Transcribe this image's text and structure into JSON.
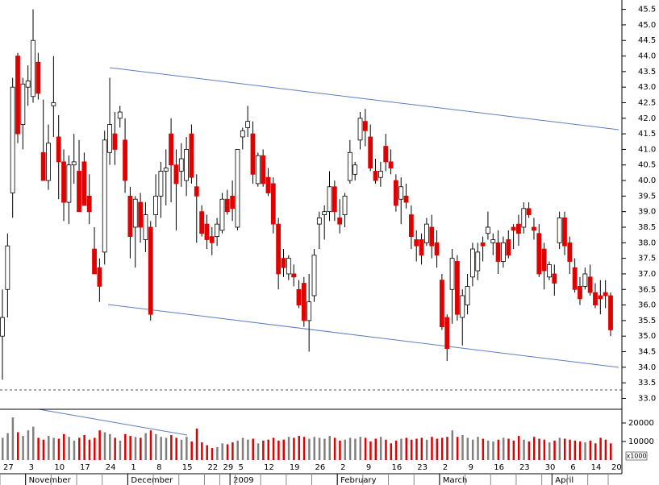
{
  "chart_data": {
    "type": "candlestick",
    "ylim": [
      32.65,
      45.8
    ],
    "yticks": [
      {
        "value": 33,
        "label": "33.0"
      },
      {
        "value": 33.5,
        "label": "33.5"
      },
      {
        "value": 34,
        "label": "34.0"
      },
      {
        "value": 34.5,
        "label": "34.5"
      },
      {
        "value": 35,
        "label": "35.0"
      },
      {
        "value": 35.5,
        "label": "35.5"
      },
      {
        "value": 36,
        "label": "36.0"
      },
      {
        "value": 36.5,
        "label": "36.5"
      },
      {
        "value": 37,
        "label": "37.0"
      },
      {
        "value": 37.5,
        "label": "37.5"
      },
      {
        "value": 38,
        "label": "38.0"
      },
      {
        "value": 38.5,
        "label": "38.5"
      },
      {
        "value": 39,
        "label": "39.0"
      },
      {
        "value": 39.5,
        "label": "39.5"
      },
      {
        "value": 40,
        "label": "40.0"
      },
      {
        "value": 40.5,
        "label": "40.5"
      },
      {
        "value": 41,
        "label": "41.0"
      },
      {
        "value": 41.5,
        "label": "41.5"
      },
      {
        "value": 42,
        "label": "42.0"
      },
      {
        "value": 42.5,
        "label": "42.5"
      },
      {
        "value": 43,
        "label": "43.0"
      },
      {
        "value": 43.5,
        "label": "43.5"
      },
      {
        "value": 44,
        "label": "44.0"
      },
      {
        "value": 44.5,
        "label": "44.5"
      },
      {
        "value": 45,
        "label": "45.0"
      },
      {
        "value": 45.5,
        "label": "45.5"
      }
    ],
    "vlim": [
      0,
      27400
    ],
    "vticks": [
      10000,
      20000
    ],
    "volume_unit": "x1000",
    "up_color": "#ffffff",
    "down_color": "#e00000",
    "volume_up_color": "#808080",
    "volume_down_color": "#e00000",
    "categories": [
      "27",
      null,
      null,
      null,
      null,
      "3",
      null,
      null,
      null,
      null,
      "10",
      null,
      null,
      null,
      null,
      "17",
      null,
      null,
      null,
      null,
      "24",
      null,
      null,
      null,
      null,
      "1",
      null,
      null,
      null,
      null,
      "8",
      null,
      null,
      null,
      null,
      "15",
      null,
      null,
      null,
      null,
      "22",
      null,
      null,
      "29",
      null,
      null,
      "5",
      null,
      null,
      null,
      null,
      "12",
      null,
      null,
      null,
      null,
      "19",
      null,
      null,
      null,
      null,
      "26",
      null,
      null,
      null,
      null,
      "2",
      null,
      null,
      null,
      null,
      "9",
      null,
      null,
      null,
      null,
      "16",
      null,
      null,
      null,
      null,
      "23",
      null,
      null,
      null,
      null,
      "2",
      null,
      null,
      null,
      null,
      "9",
      null,
      null,
      null,
      null,
      "16",
      null,
      null,
      null,
      null,
      "23",
      null,
      null,
      null,
      null,
      "30",
      null,
      null,
      null,
      null,
      "6",
      null,
      null,
      null,
      "14",
      null,
      null,
      null,
      "20"
    ],
    "months": [
      null,
      null,
      null,
      null,
      null,
      "November",
      null,
      null,
      null,
      null,
      null,
      null,
      null,
      null,
      null,
      null,
      null,
      null,
      null,
      null,
      null,
      null,
      null,
      null,
      null,
      "December",
      null,
      null,
      null,
      null,
      null,
      null,
      null,
      null,
      null,
      null,
      null,
      null,
      null,
      null,
      null,
      null,
      null,
      null,
      null,
      "2009",
      null,
      null,
      null,
      null,
      null,
      null,
      null,
      null,
      null,
      null,
      null,
      null,
      null,
      null,
      null,
      null,
      null,
      null,
      null,
      null,
      "February",
      null,
      null,
      null,
      null,
      null,
      null,
      null,
      null,
      null,
      null,
      null,
      null,
      null,
      null,
      null,
      null,
      null,
      null,
      null,
      "March",
      null,
      null,
      null,
      null,
      null,
      null,
      null,
      null,
      null,
      null,
      null,
      null,
      null,
      null,
      null,
      null,
      null,
      null,
      null,
      null,
      null,
      "April",
      null,
      null,
      null,
      null,
      null,
      null,
      null,
      null,
      null,
      null,
      null
    ],
    "open": [
      35.0,
      36.5,
      39.6,
      44.0,
      41.8,
      43.0,
      42.7,
      43.8,
      40.9,
      40.0,
      42.4,
      41.4,
      40.6,
      39.3,
      40.5,
      40.3,
      40.6,
      39.5,
      37.8,
      37.2,
      37.7,
      40.9,
      41.5,
      42.0,
      41.3,
      39.5,
      38.5,
      39.3,
      38.1,
      38.5,
      38.9,
      39.5,
      40.3,
      41.5,
      40.5,
      40.3,
      40.0,
      41.5,
      39.8,
      39.0,
      38.6,
      38.2,
      38.2,
      38.4,
      39.4,
      39.5,
      38.5,
      41.4,
      41.7,
      41.5,
      39.9,
      40.8,
      40.1,
      39.9,
      38.6,
      37.5,
      37.0,
      37.0,
      36.5,
      36.7,
      35.5,
      36.3,
      38.6,
      38.9,
      39.0,
      39.8,
      38.8,
      38.9,
      40.0,
      40.2,
      41.3,
      41.9,
      41.4,
      40.3,
      40.1,
      41.1,
      40.6,
      40.0,
      39.4,
      39.5,
      38.9,
      38.1,
      38.1,
      38.0,
      38.5,
      38.0,
      36.8,
      35.6,
      36.5,
      37.4,
      35.6,
      36.0,
      36.9,
      37.1,
      38.0,
      38.3,
      38.0,
      38.0,
      37.4,
      38.1,
      38.5,
      38.6,
      38.5,
      39.1,
      38.5,
      38.3,
      37.8,
      36.9,
      37.0,
      38.0,
      38.8,
      38.0,
      37.2,
      36.6,
      36.6,
      36.9,
      36.4,
      36.3,
      36.4,
      36.3
    ],
    "high": [
      36.5,
      38.3,
      43.3,
      44.1,
      43.3,
      43.7,
      45.5,
      44.1,
      42.6,
      41.8,
      44.0,
      42.1,
      41.0,
      40.8,
      41.5,
      41.3,
      40.9,
      40.2,
      38.5,
      37.5,
      41.6,
      43.3,
      42.2,
      42.4,
      42.0,
      39.8,
      39.5,
      39.6,
      39.3,
      38.7,
      40.2,
      40.6,
      41.0,
      42.0,
      41.0,
      41.2,
      41.4,
      41.8,
      40.2,
      39.2,
      38.9,
      38.5,
      38.8,
      39.6,
      39.7,
      40.0,
      41.0,
      41.7,
      42.4,
      41.9,
      40.9,
      41.0,
      40.4,
      40.1,
      38.8,
      37.8,
      37.6,
      37.3,
      36.8,
      36.9,
      37.0,
      37.8,
      39.0,
      39.2,
      40.3,
      40.0,
      39.4,
      39.6,
      41.3,
      40.6,
      42.2,
      42.3,
      41.8,
      40.7,
      40.6,
      41.5,
      41.0,
      40.2,
      40.1,
      39.9,
      39.2,
      38.4,
      38.3,
      38.8,
      38.9,
      38.4,
      37.0,
      35.7,
      37.8,
      37.6,
      36.5,
      37.0,
      38.0,
      38.0,
      38.2,
      39.0,
      38.3,
      38.4,
      38.2,
      38.4,
      38.6,
      38.9,
      39.3,
      39.3,
      38.8,
      38.6,
      38.0,
      37.4,
      37.3,
      39.0,
      39.0,
      38.2,
      37.5,
      36.9,
      37.2,
      37.3,
      36.7,
      36.8,
      36.8,
      36.4
    ],
    "low": [
      33.6,
      35.6,
      38.8,
      41.2,
      41.0,
      42.4,
      42.5,
      42.6,
      40.0,
      39.7,
      41.4,
      39.4,
      38.7,
      38.6,
      39.9,
      39.0,
      39.2,
      38.6,
      37.0,
      36.1,
      37.3,
      40.5,
      40.5,
      41.7,
      39.6,
      37.5,
      37.2,
      38.0,
      37.7,
      35.5,
      38.5,
      38.8,
      39.2,
      39.3,
      38.4,
      39.8,
      39.5,
      39.9,
      38.0,
      38.2,
      37.8,
      37.6,
      37.9,
      38.3,
      38.9,
      38.7,
      38.4,
      41.0,
      41.4,
      39.9,
      39.8,
      39.8,
      39.5,
      38.3,
      36.5,
      36.9,
      36.8,
      36.6,
      35.9,
      35.3,
      34.5,
      36.1,
      37.8,
      38.1,
      38.7,
      38.7,
      38.3,
      38.5,
      39.9,
      40.0,
      41.0,
      41.1,
      40.3,
      39.9,
      39.8,
      40.3,
      40.2,
      39.0,
      38.6,
      39.1,
      37.8,
      37.4,
      37.3,
      37.9,
      37.5,
      37.2,
      35.2,
      34.2,
      35.4,
      35.5,
      34.7,
      35.7,
      36.6,
      36.8,
      37.4,
      38.1,
      37.6,
      37.0,
      37.2,
      37.5,
      37.8,
      37.9,
      38.3,
      38.8,
      38.1,
      36.9,
      36.5,
      36.8,
      36.3,
      37.8,
      37.6,
      37.0,
      36.4,
      36.0,
      36.5,
      36.3,
      35.9,
      35.7,
      35.9,
      35.0
    ],
    "close": [
      35.6,
      37.9,
      43.0,
      41.5,
      43.1,
      43.2,
      44.5,
      42.8,
      40.0,
      41.2,
      42.5,
      40.6,
      39.3,
      40.5,
      40.6,
      39.0,
      39.2,
      39.0,
      37.0,
      36.6,
      41.3,
      41.8,
      41.0,
      42.2,
      40.0,
      38.2,
      39.4,
      38.5,
      38.9,
      35.7,
      39.5,
      40.3,
      40.4,
      40.5,
      39.9,
      40.7,
      41.0,
      40.1,
      39.5,
      38.3,
      38.1,
      38.0,
      38.6,
      39.4,
      39.0,
      39.1,
      41.0,
      41.6,
      41.9,
      40.2,
      40.8,
      39.9,
      39.6,
      38.6,
      37.0,
      37.2,
      37.5,
      36.9,
      36.0,
      35.5,
      36.1,
      37.6,
      38.8,
      39.0,
      39.8,
      39.0,
      38.6,
      39.5,
      40.9,
      40.5,
      42.0,
      41.6,
      40.4,
      40.0,
      40.3,
      40.6,
      40.4,
      39.2,
      39.8,
      39.3,
      38.2,
      37.9,
      37.6,
      38.6,
      37.9,
      37.6,
      35.3,
      34.6,
      37.5,
      35.7,
      36.3,
      36.6,
      37.8,
      37.7,
      37.9,
      38.5,
      38.1,
      37.4,
      38.0,
      37.6,
      38.4,
      38.3,
      39.1,
      38.9,
      38.4,
      37.0,
      37.1,
      37.3,
      36.7,
      38.8,
      37.9,
      37.4,
      36.5,
      36.2,
      37.0,
      36.4,
      36.0,
      36.2,
      36.3,
      35.2
    ],
    "volume": [
      12000,
      14500,
      23000,
      15000,
      13000,
      16000,
      18000,
      12000,
      11000,
      13000,
      12000,
      11500,
      14000,
      12500,
      10500,
      12000,
      13500,
      11000,
      12000,
      16000,
      15000,
      14000,
      12000,
      10500,
      14000,
      13000,
      12500,
      12000,
      14500,
      16000,
      14000,
      12500,
      12000,
      13500,
      12000,
      11000,
      12500,
      10000,
      17000,
      9500,
      8000,
      6500,
      7000,
      9000,
      8500,
      9500,
      10500,
      12000,
      11000,
      11500,
      9000,
      10500,
      11000,
      12000,
      10500,
      11000,
      12500,
      12000,
      13000,
      12500,
      11500,
      12500,
      12000,
      11500,
      13000,
      12000,
      10500,
      11000,
      12000,
      11500,
      12500,
      12000,
      10000,
      11500,
      12500,
      11000,
      9000,
      10500,
      11500,
      12000,
      11000,
      11500,
      12000,
      11000,
      12500,
      11500,
      12000,
      12500,
      16000,
      12500,
      13500,
      12000,
      11000,
      12500,
      11500,
      10500,
      10000,
      11000,
      12000,
      11500,
      10500,
      13000,
      11000,
      10000,
      12500,
      11500,
      11000,
      9500,
      10500,
      12000,
      11500,
      11000,
      10500,
      10000,
      9500,
      10500,
      9000,
      12000,
      11000,
      9000
    ]
  }
}
